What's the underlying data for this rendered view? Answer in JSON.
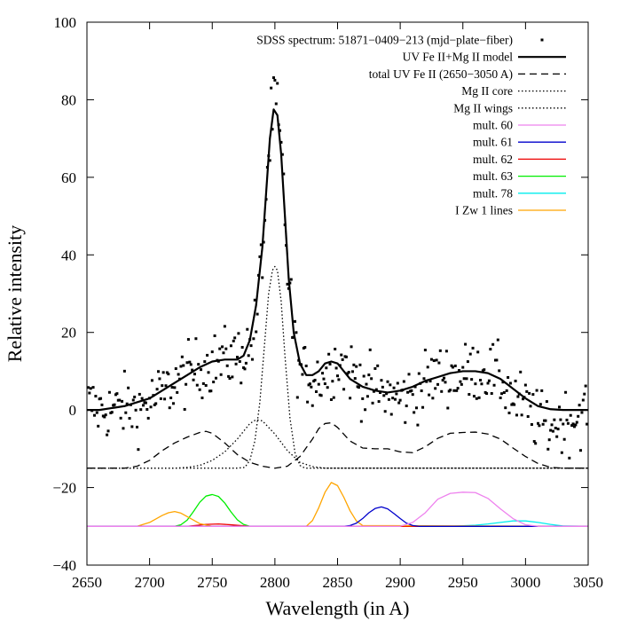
{
  "chart_data": {
    "type": "line",
    "xlabel": "Wavelength (in A)",
    "ylabel": "Relative intensity",
    "xlim": [
      2650,
      3050
    ],
    "ylim": [
      -40,
      100
    ],
    "xticks": [
      2650,
      2700,
      2750,
      2800,
      2850,
      2900,
      2950,
      3000,
      3050
    ],
    "yticks": [
      -40,
      -20,
      0,
      20,
      40,
      60,
      80,
      100
    ],
    "grid": false,
    "legend_position": "top-right",
    "legend": [
      {
        "label": "SDSS spectrum: 51871−0409−213 (mjd−plate−fiber)",
        "color": "#000000",
        "style": "points"
      },
      {
        "label": "UV Fe II+Mg II model",
        "color": "#000000",
        "style": "solid-thick"
      },
      {
        "label": "total UV Fe II (2650−3050 A)",
        "color": "#000000",
        "style": "dashed"
      },
      {
        "label": "Mg II core",
        "color": "#000000",
        "style": "dotted"
      },
      {
        "label": "Mg II wings",
        "color": "#000000",
        "style": "dotted"
      },
      {
        "label": "mult. 60",
        "color": "#ee82ee",
        "style": "solid"
      },
      {
        "label": "mult. 61",
        "color": "#0000cc",
        "style": "solid"
      },
      {
        "label": "mult. 62",
        "color": "#ee0000",
        "style": "solid"
      },
      {
        "label": "mult. 63",
        "color": "#00ee00",
        "style": "solid"
      },
      {
        "label": "mult. 78",
        "color": "#00eeee",
        "style": "solid"
      },
      {
        "label": "I Zw 1 lines",
        "color": "#ffa500",
        "style": "solid"
      }
    ],
    "series": [
      {
        "name": "SDSS spectrum: 51871−0409−213 (mjd−plate−fiber)",
        "kind": "scatter",
        "color": "#000000",
        "noise_amplitude": 4,
        "x": [
          2650,
          2660,
          2670,
          2680,
          2690,
          2700,
          2710,
          2720,
          2730,
          2740,
          2750,
          2760,
          2770,
          2780,
          2785,
          2790,
          2795,
          2800,
          2805,
          2810,
          2815,
          2820,
          2830,
          2840,
          2850,
          2860,
          2870,
          2880,
          2890,
          2900,
          2910,
          2920,
          2930,
          2940,
          2950,
          2960,
          2970,
          2980,
          2990,
          3000,
          3010,
          3020,
          3030,
          3040,
          3050
        ],
        "y": [
          2,
          0,
          0,
          1,
          0,
          2,
          4,
          7,
          9,
          11,
          12,
          13,
          14,
          16,
          22,
          40,
          66,
          80,
          66,
          38,
          18,
          10,
          8,
          9,
          13,
          10,
          7,
          5,
          4,
          3,
          4,
          7,
          9,
          9,
          9,
          10,
          10,
          8,
          3,
          1,
          -3,
          -4,
          -3,
          -2,
          1
        ]
      },
      {
        "name": "UV Fe II+Mg II model",
        "color": "#000000",
        "dash": "",
        "width": 2.2,
        "x": [
          2650,
          2660,
          2670,
          2680,
          2690,
          2700,
          2710,
          2720,
          2730,
          2740,
          2750,
          2760,
          2770,
          2775,
          2780,
          2785,
          2790,
          2793,
          2796,
          2799,
          2802,
          2805,
          2808,
          2811,
          2815,
          2820,
          2825,
          2830,
          2835,
          2840,
          2845,
          2850,
          2855,
          2860,
          2870,
          2880,
          2890,
          2900,
          2910,
          2920,
          2930,
          2940,
          2950,
          2960,
          2970,
          2980,
          2990,
          3000,
          3010,
          3020,
          3030,
          3040,
          3050
        ],
        "y": [
          0,
          0,
          0.5,
          1,
          2,
          3,
          5,
          7,
          9,
          11,
          12.5,
          13,
          13,
          14,
          18,
          27,
          42,
          56,
          70,
          77.5,
          76,
          66,
          50,
          34,
          20,
          12,
          9,
          9,
          10,
          12,
          12.5,
          12,
          10,
          8,
          6,
          5,
          4.5,
          5,
          6,
          7.5,
          8.5,
          9.5,
          10,
          10,
          9.5,
          8,
          5.5,
          3,
          1,
          0.2,
          0,
          0,
          0
        ]
      },
      {
        "name": "total UV Fe II (2650−3050 A)",
        "color": "#000000",
        "dash": "8,5",
        "width": 1.3,
        "x": [
          2650,
          2680,
          2690,
          2700,
          2710,
          2720,
          2730,
          2740,
          2745,
          2750,
          2760,
          2770,
          2780,
          2790,
          2800,
          2810,
          2820,
          2830,
          2835,
          2840,
          2845,
          2850,
          2860,
          2870,
          2880,
          2890,
          2900,
          2910,
          2920,
          2930,
          2940,
          2950,
          2960,
          2970,
          2980,
          2990,
          3000,
          3010,
          3020,
          3030,
          3050
        ],
        "y": [
          -15,
          -15,
          -14.5,
          -13,
          -10.5,
          -8.5,
          -7,
          -5.8,
          -5.5,
          -6,
          -8.5,
          -11.5,
          -13.5,
          -14.5,
          -15,
          -14.5,
          -12,
          -7.5,
          -4.8,
          -3.5,
          -3.3,
          -4.5,
          -8,
          -9.8,
          -10,
          -10,
          -10.8,
          -11,
          -9.5,
          -7.3,
          -6,
          -5.8,
          -5.7,
          -6.2,
          -7.5,
          -9.8,
          -12,
          -13.8,
          -14.8,
          -15,
          -15
        ]
      },
      {
        "name": "Mg II core",
        "color": "#000000",
        "dash": "1.5,2.5",
        "width": 1.3,
        "x": [
          2650,
          2770,
          2776,
          2780,
          2784,
          2788,
          2792,
          2795,
          2798,
          2800,
          2802,
          2805,
          2808,
          2812,
          2816,
          2820,
          2824,
          3050
        ],
        "y": [
          -15,
          -15,
          -14.8,
          -13,
          -8,
          2,
          18,
          30,
          36,
          37,
          36,
          28,
          14,
          -2,
          -11,
          -14.3,
          -15,
          -15
        ]
      },
      {
        "name": "Mg II wings",
        "color": "#000000",
        "dash": "1.5,2.5",
        "width": 1.3,
        "x": [
          2650,
          2720,
          2730,
          2740,
          2750,
          2760,
          2770,
          2780,
          2785,
          2790,
          2800,
          2810,
          2820,
          2830,
          2840,
          2850,
          3050
        ],
        "y": [
          -15,
          -15,
          -14.8,
          -14.3,
          -13,
          -10.8,
          -7.5,
          -3.5,
          -2.5,
          -2.8,
          -6.2,
          -10.5,
          -13.5,
          -14.6,
          -15,
          -15,
          -15
        ]
      },
      {
        "name": "mult. 60",
        "color": "#ee82ee",
        "dash": "",
        "width": 1.3,
        "x": [
          2650,
          2900,
          2910,
          2920,
          2930,
          2940,
          2950,
          2960,
          2970,
          2980,
          2990,
          3000,
          3010,
          3050
        ],
        "y": [
          -30,
          -30,
          -29,
          -26.5,
          -23,
          -21.5,
          -21.2,
          -21.3,
          -22.8,
          -25.5,
          -28,
          -29.6,
          -30,
          -30
        ]
      },
      {
        "name": "mult. 61",
        "color": "#0000cc",
        "dash": "",
        "width": 1.3,
        "x": [
          2650,
          2855,
          2860,
          2865,
          2870,
          2875,
          2880,
          2885,
          2890,
          2895,
          2900,
          2905,
          2910,
          2915,
          3050
        ],
        "y": [
          -30,
          -30,
          -29.8,
          -29.2,
          -28,
          -26.5,
          -25.4,
          -25,
          -25.5,
          -26.7,
          -28,
          -29.2,
          -29.8,
          -30,
          -30
        ]
      },
      {
        "name": "mult. 62",
        "color": "#ee0000",
        "dash": "",
        "width": 1.3,
        "x": [
          2650,
          2730,
          2745,
          2755,
          2765,
          2780,
          3050
        ],
        "y": [
          -30,
          -30,
          -29.5,
          -29.4,
          -29.6,
          -30,
          -30
        ]
      },
      {
        "name": "mult. 63",
        "color": "#00ee00",
        "dash": "",
        "width": 1.3,
        "x": [
          2650,
          2720,
          2725,
          2730,
          2735,
          2740,
          2745,
          2750,
          2755,
          2760,
          2765,
          2770,
          2775,
          2780,
          3050
        ],
        "y": [
          -30,
          -30,
          -29.6,
          -28.4,
          -26.2,
          -23.8,
          -22.2,
          -21.8,
          -22.3,
          -24,
          -26.3,
          -28.3,
          -29.5,
          -30,
          -30
        ]
      },
      {
        "name": "mult. 78",
        "color": "#00eeee",
        "dash": "",
        "width": 1.3,
        "x": [
          2650,
          2940,
          2960,
          2970,
          2980,
          2990,
          3000,
          3010,
          3020,
          3030,
          3050
        ],
        "y": [
          -30,
          -30,
          -29.7,
          -29.4,
          -29,
          -28.6,
          -28.6,
          -29,
          -29.5,
          -29.9,
          -30
        ]
      },
      {
        "name": "I Zw 1 lines",
        "color": "#ffa500",
        "dash": "",
        "width": 1.3,
        "x": [
          2650,
          2690,
          2700,
          2710,
          2715,
          2720,
          2725,
          2730,
          2740,
          2750,
          2800,
          2825,
          2830,
          2835,
          2840,
          2845,
          2850,
          2855,
          2860,
          2865,
          2870,
          3050
        ],
        "y": [
          -30,
          -30,
          -29,
          -27.2,
          -26.5,
          -26.2,
          -26.6,
          -27.5,
          -29.3,
          -30,
          -30,
          -30,
          -28.5,
          -25.2,
          -21.2,
          -18.7,
          -19.5,
          -22.5,
          -26,
          -28.6,
          -29.8,
          -30
        ]
      }
    ]
  }
}
